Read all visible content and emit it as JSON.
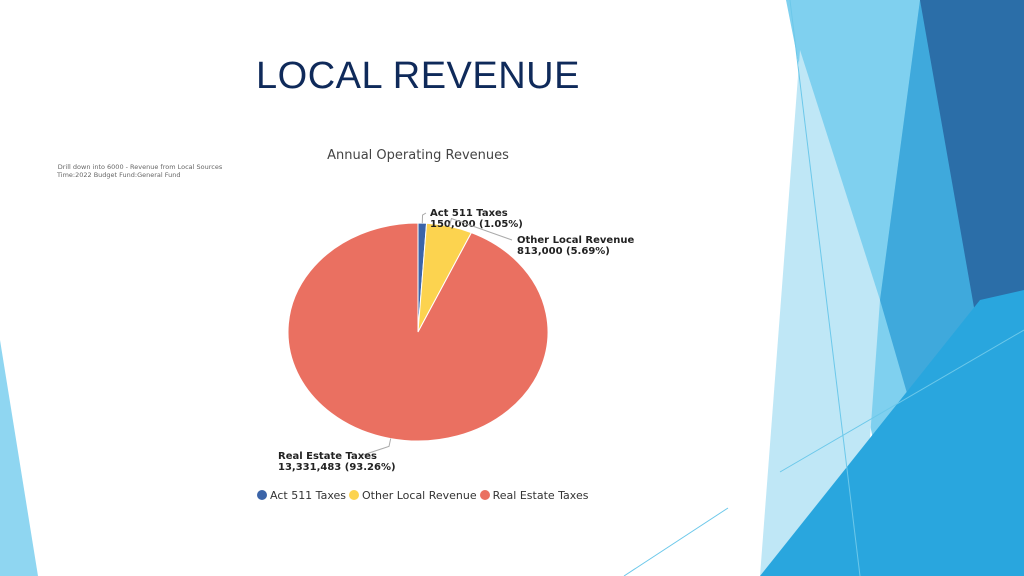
{
  "slide": {
    "title": "LOCAL REVENUE"
  },
  "drilldown": {
    "line1": "Drill down into 6000 - Revenue from Local Sources",
    "line2": "Time:2022 Budget Fund:General Fund"
  },
  "colors": {
    "title": "#0f2a5a",
    "accent_light": "#7fd0ef",
    "accent_mid": "#3fa9dc",
    "accent_dark": "#2b6ea8"
  },
  "chart_data": {
    "type": "pie",
    "title": "Annual Operating Revenues",
    "legend_position": "bottom",
    "slices": [
      {
        "label": "Act 511 Taxes",
        "value": 150000,
        "value_text": "150,000",
        "percent_text": "(1.05%)",
        "color": "#3b64a8"
      },
      {
        "label": "Other Local Revenue",
        "value": 813000,
        "value_text": "813,000",
        "percent_text": "(5.69%)",
        "color": "#fcd34f"
      },
      {
        "label": "Real Estate Taxes",
        "value": 13331483,
        "value_text": "13,331,483",
        "percent_text": "(93.26%)",
        "color": "#ea7061"
      }
    ]
  }
}
